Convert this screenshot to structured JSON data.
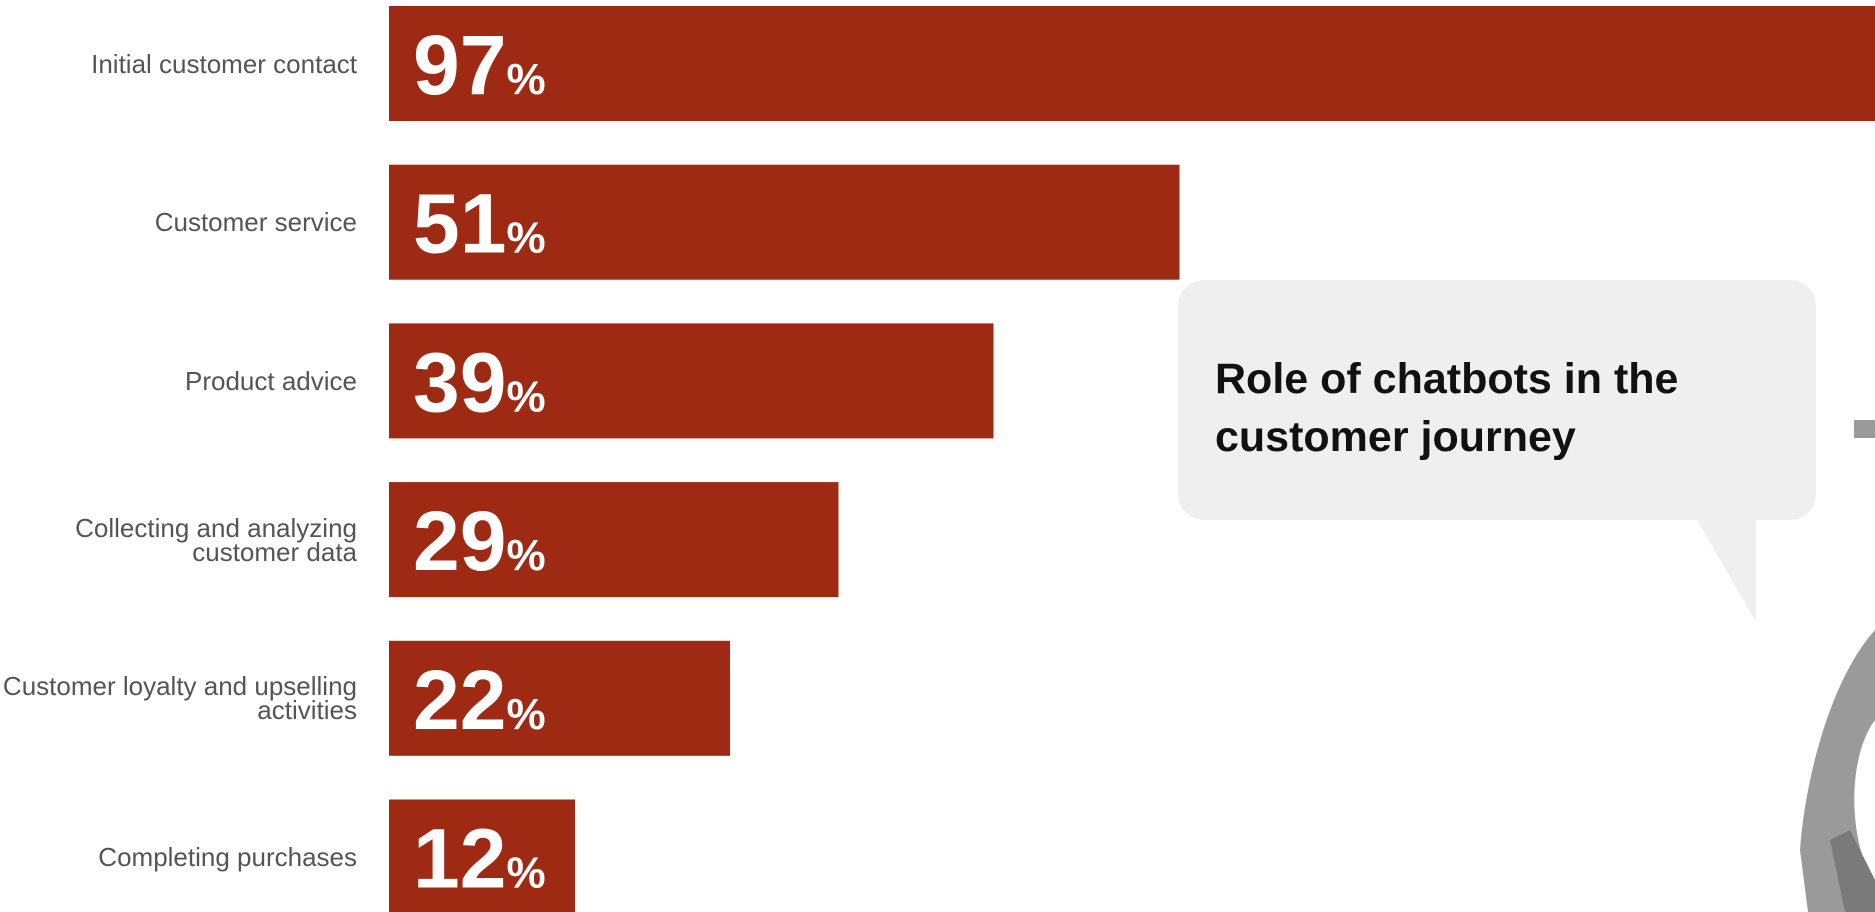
{
  "chart_data": {
    "type": "bar",
    "orientation": "horizontal",
    "title": "Role of chatbots in the customer journey",
    "categories": [
      "Initial customer contact",
      "Customer service",
      "Product advice",
      "Collecting and analyzing customer data",
      "Customer loyalty and upselling activities",
      "Completing purchases"
    ],
    "values": [
      97,
      51,
      39,
      29,
      22,
      12
    ],
    "value_labels": [
      "97%",
      "51%",
      "39%",
      "29%",
      "22%",
      "12%"
    ],
    "color": "#9e2a14",
    "xlim": [
      0,
      100
    ]
  }
}
